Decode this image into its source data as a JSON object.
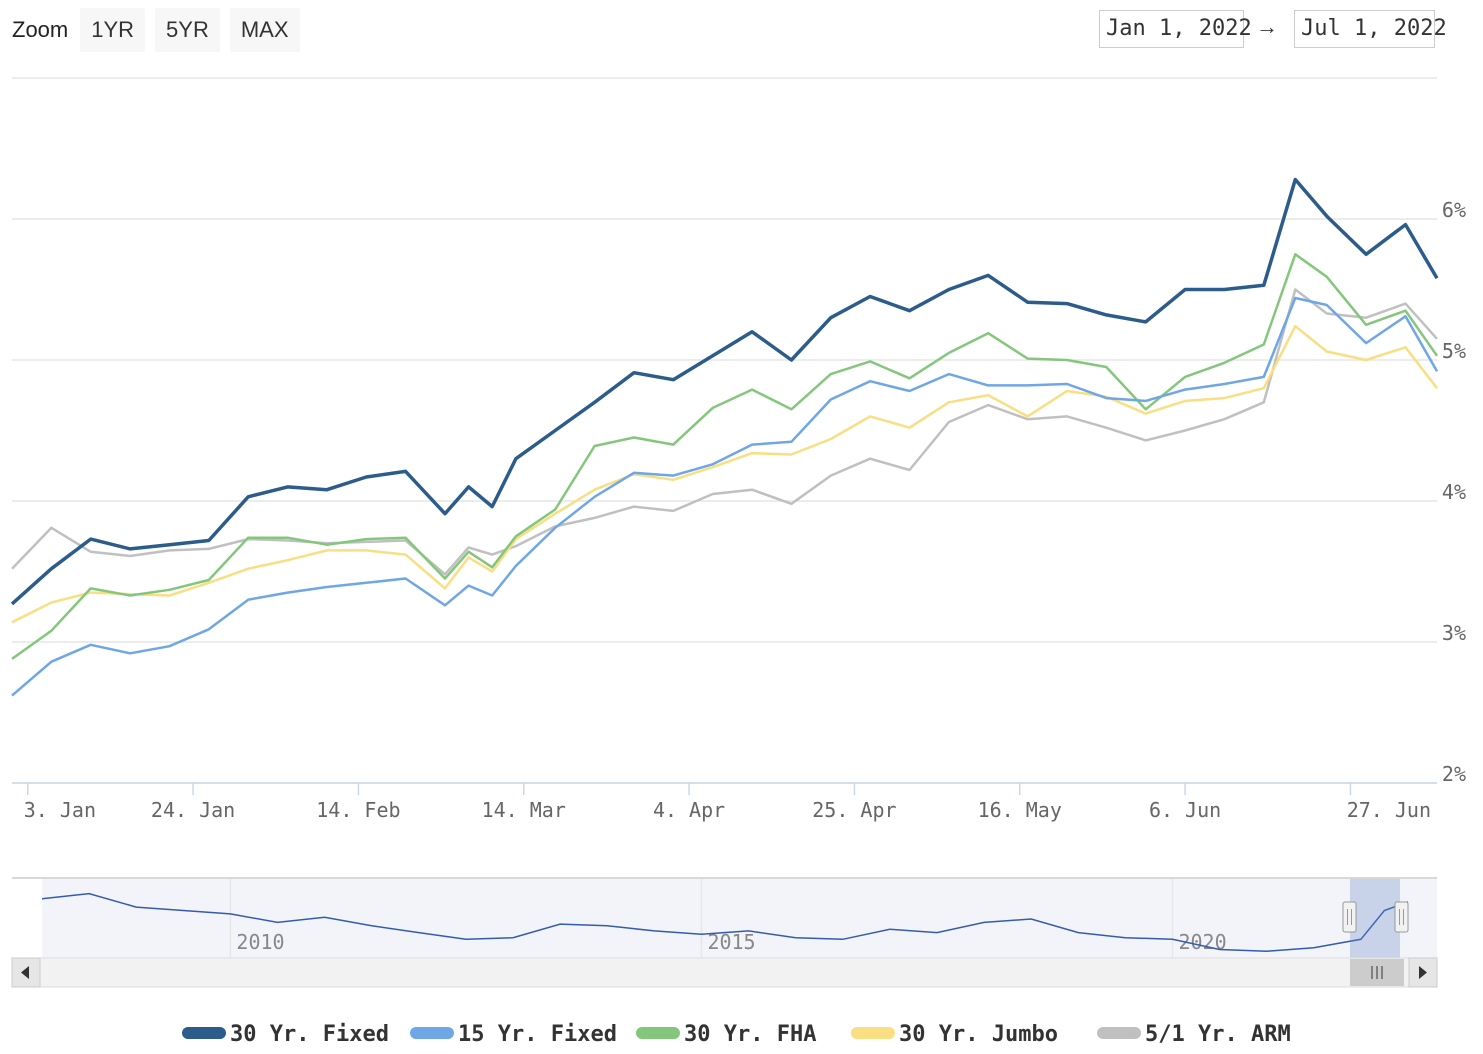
{
  "zoom": {
    "label": "Zoom",
    "buttons": [
      {
        "name": "zoom-1yr-button",
        "label": "1YR"
      },
      {
        "name": "zoom-5yr-button",
        "label": "5YR"
      },
      {
        "name": "zoom-max-button",
        "label": "MAX"
      }
    ]
  },
  "range": {
    "from": "Jan 1, 2022",
    "arrow": "→",
    "to": "Jul 1, 2022"
  },
  "chart_data": {
    "type": "line",
    "title": "",
    "xlabel": "",
    "ylabel": "",
    "x_range": [
      "2022-01-01",
      "2022-07-01"
    ],
    "ylim": [
      2,
      7
    ],
    "y_ticks": [
      "2%",
      "3%",
      "4%",
      "5%",
      "6%"
    ],
    "x_ticks": [
      "3. Jan",
      "24. Jan",
      "14. Feb",
      "14. Mar",
      "4. Apr",
      "25. Apr",
      "16. May",
      "6. Jun",
      "27. Jun"
    ],
    "grid": true,
    "legend_position": "bottom",
    "colors": {
      "30 Yr. Fixed": "#2b5c8a",
      "15 Yr. Fixed": "#6ea6e6",
      "30 Yr. FHA": "#84c77c",
      "30 Yr. Jumbo": "#f9de82",
      "5/1 Yr. ARM": "#c0c0c0"
    },
    "x": [
      "2022-01-01",
      "2022-01-06",
      "2022-01-11",
      "2022-01-16",
      "2022-01-21",
      "2022-01-26",
      "2022-01-31",
      "2022-02-05",
      "2022-02-10",
      "2022-02-15",
      "2022-02-20",
      "2022-02-25",
      "2022-02-28",
      "2022-03-03",
      "2022-03-06",
      "2022-03-11",
      "2022-03-16",
      "2022-03-21",
      "2022-03-26",
      "2022-03-31",
      "2022-04-05",
      "2022-04-10",
      "2022-04-15",
      "2022-04-20",
      "2022-04-25",
      "2022-04-30",
      "2022-05-05",
      "2022-05-10",
      "2022-05-15",
      "2022-05-20",
      "2022-05-25",
      "2022-05-30",
      "2022-06-04",
      "2022-06-09",
      "2022-06-13",
      "2022-06-17",
      "2022-06-22",
      "2022-06-27",
      "2022-07-01"
    ],
    "series": [
      {
        "name": "30 Yr. Fixed",
        "values": [
          3.27,
          3.52,
          3.73,
          3.66,
          3.69,
          3.72,
          4.03,
          4.1,
          4.08,
          4.17,
          4.21,
          3.91,
          4.1,
          3.96,
          4.3,
          4.5,
          4.7,
          4.91,
          4.86,
          5.03,
          5.2,
          5.0,
          5.3,
          5.45,
          5.35,
          5.5,
          5.6,
          5.41,
          5.4,
          5.32,
          5.27,
          5.5,
          5.5,
          5.53,
          6.28,
          6.02,
          5.75,
          5.96,
          5.58
        ]
      },
      {
        "name": "15 Yr. Fixed",
        "values": [
          2.62,
          2.86,
          2.98,
          2.92,
          2.97,
          3.09,
          3.3,
          3.35,
          3.39,
          3.42,
          3.45,
          3.26,
          3.4,
          3.33,
          3.54,
          3.81,
          4.03,
          4.2,
          4.18,
          4.26,
          4.4,
          4.42,
          4.72,
          4.85,
          4.78,
          4.9,
          4.82,
          4.82,
          4.83,
          4.73,
          4.71,
          4.79,
          4.83,
          4.88,
          5.44,
          5.39,
          5.12,
          5.31,
          4.92
        ]
      },
      {
        "name": "30 Yr. FHA",
        "values": [
          2.88,
          3.08,
          3.38,
          3.33,
          3.37,
          3.44,
          3.74,
          3.74,
          3.69,
          3.73,
          3.74,
          3.45,
          3.64,
          3.53,
          3.75,
          3.94,
          4.39,
          4.45,
          4.4,
          4.66,
          4.79,
          4.65,
          4.9,
          4.99,
          4.87,
          5.05,
          5.19,
          5.01,
          5.0,
          4.95,
          4.65,
          4.88,
          4.98,
          5.11,
          5.75,
          5.59,
          5.25,
          5.35,
          5.03
        ]
      },
      {
        "name": "30 Yr. Jumbo",
        "values": [
          3.14,
          3.28,
          3.35,
          3.34,
          3.33,
          3.42,
          3.52,
          3.58,
          3.65,
          3.65,
          3.62,
          3.38,
          3.6,
          3.5,
          3.73,
          3.91,
          4.08,
          4.19,
          4.15,
          4.24,
          4.34,
          4.33,
          4.44,
          4.6,
          4.52,
          4.7,
          4.75,
          4.6,
          4.78,
          4.74,
          4.62,
          4.71,
          4.73,
          4.8,
          5.24,
          5.06,
          5.0,
          5.09,
          4.8
        ]
      },
      {
        "name": "5/1 Yr. ARM",
        "values": [
          3.52,
          3.81,
          3.64,
          3.61,
          3.65,
          3.66,
          3.73,
          3.72,
          3.7,
          3.71,
          3.72,
          3.48,
          3.67,
          3.62,
          3.68,
          3.82,
          3.88,
          3.96,
          3.93,
          4.05,
          4.08,
          3.98,
          4.18,
          4.3,
          4.22,
          4.56,
          4.68,
          4.58,
          4.6,
          4.52,
          4.43,
          4.5,
          4.58,
          4.7,
          5.5,
          5.33,
          5.3,
          5.4,
          5.15
        ]
      }
    ]
  },
  "navigator": {
    "labels": [
      "2010",
      "2015",
      "2020"
    ],
    "years": [
      2008,
      2008.5,
      2009,
      2009.5,
      2010,
      2010.5,
      2011,
      2011.5,
      2012,
      2012.5,
      2013,
      2013.5,
      2014,
      2014.5,
      2015,
      2015.5,
      2016,
      2016.5,
      2017,
      2017.5,
      2018,
      2018.5,
      2019,
      2019.5,
      2020,
      2020.5,
      2021,
      2021.5,
      2022,
      2022.25,
      2022.5
    ],
    "values": [
      5.9,
      6.2,
      5.4,
      5.2,
      5.0,
      4.5,
      4.8,
      4.3,
      3.9,
      3.5,
      3.6,
      4.4,
      4.3,
      4.0,
      3.8,
      4.0,
      3.6,
      3.5,
      4.1,
      3.9,
      4.5,
      4.7,
      3.9,
      3.6,
      3.5,
      2.9,
      2.8,
      3.0,
      3.5,
      5.2,
      5.7
    ]
  },
  "legend": [
    {
      "label": "30 Yr. Fixed",
      "color": "#2b5c8a"
    },
    {
      "label": "15 Yr. Fixed",
      "color": "#6ea6e6"
    },
    {
      "label": "30 Yr. FHA",
      "color": "#84c77c"
    },
    {
      "label": "30 Yr. Jumbo",
      "color": "#f9de82"
    },
    {
      "label": "5/1 Yr. ARM",
      "color": "#c0c0c0"
    }
  ]
}
